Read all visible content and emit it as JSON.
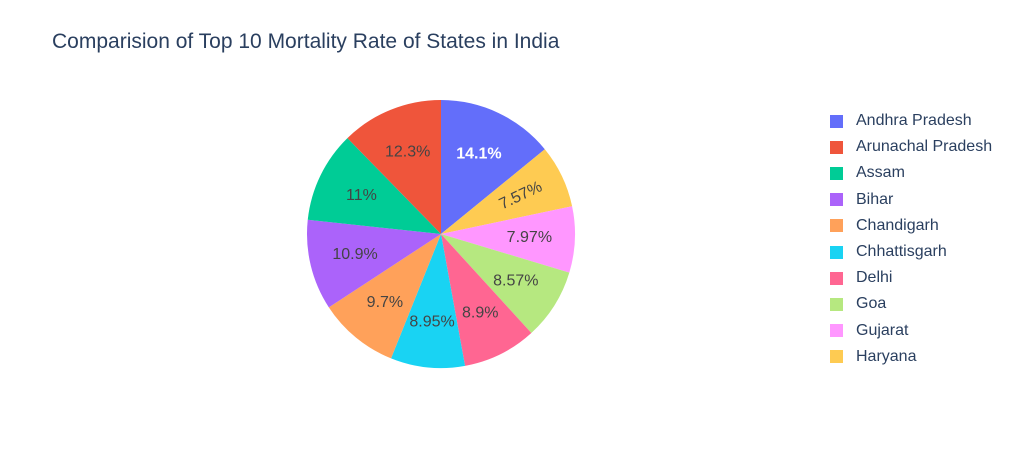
{
  "chart_data": {
    "type": "pie",
    "title": "Comparision of Top 10 Mortality Rate of States in India",
    "legend_position": "right",
    "direction": "clockwise",
    "start_angle": "top",
    "slices": [
      {
        "name": "Andhra Pradesh",
        "value": 14.1,
        "label": "14.1%",
        "color": "#636efa",
        "label_color": "#ffffff"
      },
      {
        "name": "Haryana",
        "value": 7.57,
        "label": "7.57%",
        "color": "#fecb52",
        "label_color": "#444444"
      },
      {
        "name": "Gujarat",
        "value": 7.97,
        "label": "7.97%",
        "color": "#ff97ff",
        "label_color": "#444444"
      },
      {
        "name": "Goa",
        "value": 8.57,
        "label": "8.57%",
        "color": "#b6e880",
        "label_color": "#444444"
      },
      {
        "name": "Delhi",
        "value": 8.9,
        "label": "8.9%",
        "color": "#ff6692",
        "label_color": "#444444"
      },
      {
        "name": "Chhattisgarh",
        "value": 8.95,
        "label": "8.95%",
        "color": "#19d3f3",
        "label_color": "#444444"
      },
      {
        "name": "Chandigarh",
        "value": 9.7,
        "label": "9.7%",
        "color": "#ffa15a",
        "label_color": "#444444"
      },
      {
        "name": "Bihar",
        "value": 10.9,
        "label": "10.9%",
        "color": "#ab63fa",
        "label_color": "#444444"
      },
      {
        "name": "Assam",
        "value": 11,
        "label": "11%",
        "color": "#00cc96",
        "label_color": "#444444"
      },
      {
        "name": "Arunachal Pradesh",
        "value": 12.3,
        "label": "12.3%",
        "color": "#ef553b",
        "label_color": "#444444"
      }
    ],
    "legend": [
      {
        "name": "Andhra Pradesh",
        "color": "#636efa"
      },
      {
        "name": "Arunachal Pradesh",
        "color": "#ef553b"
      },
      {
        "name": "Assam",
        "color": "#00cc96"
      },
      {
        "name": "Bihar",
        "color": "#ab63fa"
      },
      {
        "name": "Chandigarh",
        "color": "#ffa15a"
      },
      {
        "name": "Chhattisgarh",
        "color": "#19d3f3"
      },
      {
        "name": "Delhi",
        "color": "#ff6692"
      },
      {
        "name": "Goa",
        "color": "#b6e880"
      },
      {
        "name": "Gujarat",
        "color": "#ff97ff"
      },
      {
        "name": "Haryana",
        "color": "#fecb52"
      }
    ]
  }
}
